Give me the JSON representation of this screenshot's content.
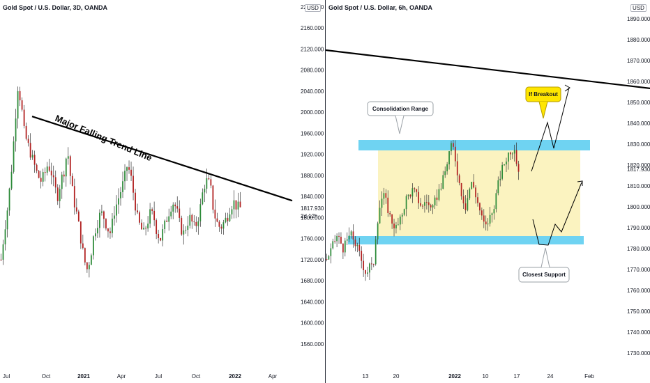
{
  "left": {
    "title": "Gold Spot / U.S. Dollar, 3D, OANDA",
    "currency": "USD",
    "last_price": "1817.930",
    "countdown": "2d 12h",
    "trend_label": "Major Falling Trend Line"
  },
  "right": {
    "title": "Gold Spot / U.S. Dollar, 6h, OANDA",
    "currency": "USD",
    "last_price": "1817.930",
    "callouts": {
      "consolidation": "Consolidation Range",
      "breakout": "If Breakout",
      "support": "Closest Support"
    }
  },
  "colors": {
    "up": "#2e8b3a",
    "down": "#b22222",
    "zone_blue": "#6fd3f2",
    "zone_yellow": "#fbf3c0",
    "breakout_bubble": "#ffe600"
  },
  "chart_data": [
    {
      "type": "candlestick",
      "title": "Gold Spot / U.S. Dollar, 3D, OANDA",
      "ylim": [
        1520,
        2200
      ],
      "y_ticks": [
        1560,
        1600,
        1640,
        1680,
        1720,
        1760,
        1800,
        1840,
        1880,
        1920,
        1960,
        2000,
        2040,
        2080,
        2120,
        2160,
        2200
      ],
      "x_tick_labels": [
        "Jul",
        "Oct",
        "2021",
        "Apr",
        "Jul",
        "Oct",
        "2022",
        "Apr"
      ],
      "close_path": [
        1720,
        1775,
        1820,
        1880,
        1960,
        2050,
        2020,
        1960,
        1940,
        1920,
        1900,
        1880,
        1870,
        1880,
        1900,
        1890,
        1860,
        1840,
        1870,
        1890,
        1930,
        1870,
        1830,
        1800,
        1760,
        1720,
        1700,
        1730,
        1770,
        1790,
        1810,
        1800,
        1780,
        1770,
        1810,
        1830,
        1850,
        1870,
        1900,
        1880,
        1840,
        1800,
        1780,
        1770,
        1790,
        1810,
        1800,
        1770,
        1760,
        1780,
        1800,
        1820,
        1830,
        1810,
        1780,
        1770,
        1790,
        1800,
        1780,
        1790,
        1820,
        1860,
        1870,
        1860,
        1810,
        1790,
        1780,
        1790,
        1800,
        1820,
        1830,
        1820,
        1818
      ],
      "last_price": 1817.93,
      "trend_line": {
        "from": {
          "date": "2020-08",
          "price": 1990
        },
        "to": {
          "date": "2022-04",
          "price": 1830
        },
        "label": "Major Falling Trend Line"
      }
    },
    {
      "type": "candlestick",
      "title": "Gold Spot / U.S. Dollar, 6h, OANDA",
      "ylim": [
        1725,
        1895
      ],
      "y_ticks": [
        1730,
        1740,
        1750,
        1760,
        1770,
        1780,
        1790,
        1800,
        1810,
        1820,
        1830,
        1840,
        1850,
        1860,
        1870,
        1880,
        1890
      ],
      "x_tick_labels": [
        "13",
        "20",
        "2022",
        "10",
        "17",
        "24",
        "Feb"
      ],
      "close_path": [
        1775,
        1778,
        1782,
        1786,
        1784,
        1780,
        1783,
        1787,
        1785,
        1781,
        1777,
        1772,
        1768,
        1772,
        1770,
        1790,
        1800,
        1806,
        1802,
        1796,
        1792,
        1790,
        1792,
        1798,
        1804,
        1806,
        1808,
        1806,
        1802,
        1800,
        1804,
        1800,
        1798,
        1804,
        1808,
        1812,
        1818,
        1826,
        1830,
        1822,
        1812,
        1805,
        1800,
        1808,
        1812,
        1806,
        1800,
        1794,
        1790,
        1794,
        1797,
        1804,
        1812,
        1818,
        1822,
        1826,
        1828,
        1824,
        1818
      ],
      "last_price": 1817.93,
      "resistance_zone": [
        1827,
        1832
      ],
      "support_zone": [
        1782,
        1786
      ],
      "consolidation_range": [
        1786,
        1827
      ],
      "trend_line_labels": [
        "Consolidation Range",
        "If Breakout",
        "Closest Support"
      ]
    }
  ]
}
